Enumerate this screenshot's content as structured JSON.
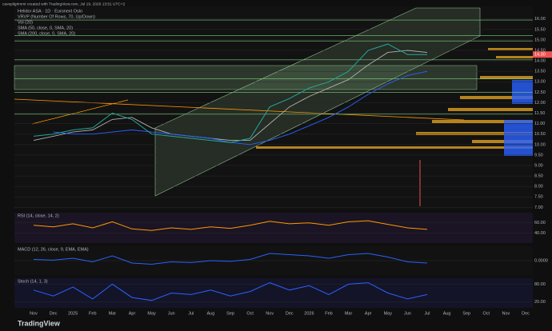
{
  "header": {
    "caption": "cavepilgrimmt created with TradingView.com, Jul 19, 2026 13:51 UTC+2",
    "logo": "TradingView"
  },
  "chart_data": [
    {
      "type": "line",
      "title": "Helidor ASA · 1D · Euronext Oslo",
      "indicators": [
        "VRVP (Number Of Rows, 70, Up/Down)",
        "Vol (20)"
      ],
      "categories": [
        "Nov",
        "Dec",
        "2025",
        "Feb",
        "Mar",
        "Apr",
        "May",
        "Jun",
        "Jul",
        "Aug",
        "Sep",
        "Oct",
        "Nov",
        "Dec",
        "2026",
        "Feb",
        "Mar",
        "Apr",
        "May",
        "Jun",
        "Jul",
        "Aug",
        "Sep",
        "Oct",
        "Nov",
        "Dec"
      ],
      "values": [
        10.4,
        10.5,
        10.7,
        10.8,
        11.5,
        11.2,
        10.5,
        10.4,
        10.3,
        10.2,
        10.1,
        10.3,
        11.8,
        12.2,
        12.7,
        13.0,
        13.5,
        14.5,
        14.8,
        14.3,
        14.3,
        null,
        null,
        null,
        null,
        null
      ],
      "color": "#26a69a",
      "series": [
        {
          "name": "SMA (50, close, 0, SMA, 20)",
          "color": "#b0b0b0",
          "values": [
            10.2,
            10.4,
            10.6,
            10.7,
            11.2,
            11.3,
            10.8,
            10.5,
            10.4,
            10.3,
            10.2,
            10.2,
            11.0,
            11.8,
            12.3,
            12.7,
            13.1,
            13.8,
            14.4,
            14.5,
            14.4,
            null,
            null,
            null,
            null,
            null
          ]
        },
        {
          "name": "SMA (200, close, 0, SMA, 20)",
          "color": "#2962ff",
          "values": [
            null,
            10.6,
            10.5,
            10.5,
            10.6,
            10.7,
            10.6,
            10.5,
            10.4,
            10.3,
            10.1,
            10.0,
            10.2,
            10.5,
            10.9,
            11.3,
            11.8,
            12.4,
            12.9,
            13.3,
            13.5,
            null,
            null,
            null,
            null,
            null
          ]
        }
      ],
      "levels": [
        15.95,
        15.2,
        14.95,
        14.05,
        13.15,
        12.5,
        11.45
      ],
      "last_price": {
        "value": 14.3,
        "label": "14.30"
      },
      "ylim": [
        6.9,
        16.6
      ],
      "yticks": [
        {
          "value": 7,
          "label": "7.00"
        },
        {
          "value": 7.5,
          "label": "7.50"
        },
        {
          "value": 8,
          "label": "8.00"
        },
        {
          "value": 8.5,
          "label": "8.50"
        },
        {
          "value": 9,
          "label": "9.00"
        },
        {
          "value": 9.5,
          "label": "9.50"
        },
        {
          "value": 10,
          "label": "10.00"
        },
        {
          "value": 10.5,
          "label": "10.50"
        },
        {
          "value": 11,
          "label": "11.00"
        },
        {
          "value": 11.5,
          "label": "11.50"
        },
        {
          "value": 12,
          "label": "12.00"
        },
        {
          "value": 12.5,
          "label": "12.50"
        },
        {
          "value": 13,
          "label": "13.00"
        },
        {
          "value": 13.5,
          "label": "13.50"
        },
        {
          "value": 14,
          "label": "14.00"
        },
        {
          "value": 14.5,
          "label": "14.50"
        },
        {
          "value": 15,
          "label": "15.00"
        },
        {
          "value": 15.5,
          "label": "15.50"
        },
        {
          "value": 16,
          "label": "16.00"
        }
      ],
      "grid": true
    },
    {
      "type": "line",
      "title": "RSI (14, close, 14, 2)",
      "color": "#ff9800",
      "values": [
        55,
        52,
        58,
        50,
        62,
        48,
        45,
        50,
        47,
        52,
        49,
        55,
        63,
        58,
        60,
        55,
        62,
        64,
        57,
        50,
        47,
        null,
        null,
        null,
        null,
        null
      ],
      "ylim": [
        20,
        80
      ],
      "yticks": [
        {
          "value": 40,
          "label": "40.00"
        },
        {
          "value": 60,
          "label": "60.00"
        }
      ],
      "grid": true
    },
    {
      "type": "line",
      "title": "MACD (12, 26, close, 9, EMA, EMA)",
      "color": "#2962ff",
      "values": [
        0.05,
        0.02,
        0.1,
        -0.05,
        0.2,
        -0.1,
        -0.15,
        -0.05,
        -0.08,
        0.0,
        -0.03,
        0.05,
        0.3,
        0.25,
        0.2,
        0.1,
        0.25,
        0.3,
        0.15,
        -0.05,
        -0.1,
        null,
        null,
        null,
        null,
        null
      ],
      "ylim": [
        -0.6,
        0.6
      ],
      "yticks": [
        {
          "value": 0,
          "label": "0.0000"
        }
      ],
      "grid": true
    },
    {
      "type": "line",
      "title": "Stoch (14, 1, 3)",
      "color": "#2962ff",
      "values": [
        60,
        40,
        70,
        30,
        80,
        35,
        25,
        50,
        45,
        60,
        40,
        55,
        85,
        60,
        75,
        45,
        80,
        85,
        50,
        30,
        45,
        null,
        null,
        null,
        null,
        null
      ],
      "ylim": [
        0,
        100
      ],
      "yticks": [
        {
          "value": 20,
          "label": "20.00"
        },
        {
          "value": 80,
          "label": "80.00"
        }
      ],
      "grid": true
    }
  ]
}
